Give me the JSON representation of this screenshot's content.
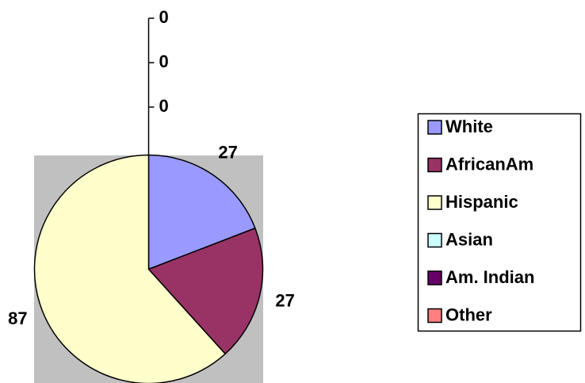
{
  "chart_data": {
    "type": "pie",
    "categories": [
      "White",
      "AfricanAm",
      "Hispanic",
      "Asian",
      "Am. Indian",
      "Other"
    ],
    "values": [
      27,
      27,
      87,
      0,
      0,
      0
    ],
    "colors": [
      "#9999ff",
      "#993366",
      "#ffffcc",
      "#ccffff",
      "#660066",
      "#ff8080"
    ],
    "legend": "right"
  }
}
